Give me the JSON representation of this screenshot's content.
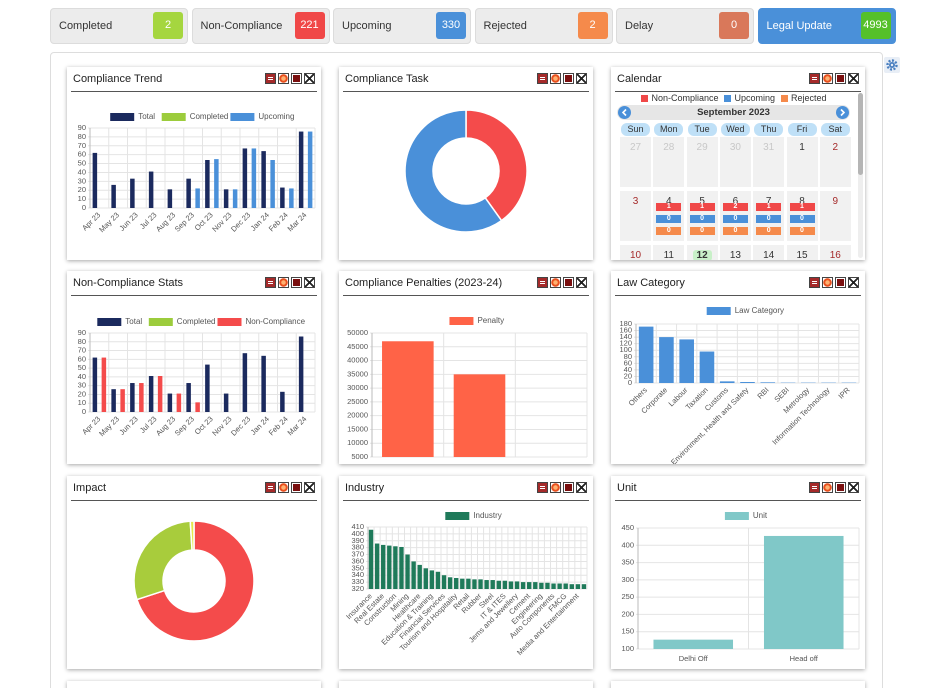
{
  "status_cards": [
    {
      "label": "Completed",
      "value": 2,
      "color": "#a5d63f"
    },
    {
      "label": "Non-Compliance",
      "value": 221,
      "color": "#f04848"
    },
    {
      "label": "Upcoming",
      "value": 330,
      "color": "#4a90d9"
    },
    {
      "label": "Rejected",
      "value": 2,
      "color": "#f58a4b"
    },
    {
      "label": "Delay",
      "value": 0,
      "color": "#d9785a"
    },
    {
      "label": "Legal Update",
      "value": 4993,
      "color": "#55c02a",
      "background": "#4a90d9"
    }
  ],
  "chart_data": [
    {
      "type": "bar",
      "title": "Compliance Trend",
      "categories": [
        "Apr 23",
        "May 23",
        "Jun 23",
        "Jul 23",
        "Aug 23",
        "Sep 23",
        "Oct 23",
        "Nov 23",
        "Dec 23",
        "Jan 24",
        "Feb 24",
        "Mar 24"
      ],
      "series": [
        {
          "name": "Total",
          "color": "#1b2a5e",
          "values": [
            62,
            26,
            33,
            41,
            21,
            33,
            54,
            21,
            67,
            64,
            23,
            86
          ]
        },
        {
          "name": "Completed",
          "color": "#9ccc3c",
          "values": [
            0,
            0,
            0,
            0,
            0,
            0,
            0,
            0,
            0,
            0,
            0,
            0
          ]
        },
        {
          "name": "Upcoming",
          "color": "#4a90d9",
          "values": [
            0,
            0,
            0,
            0,
            0,
            22,
            55,
            21,
            67,
            54,
            22,
            86
          ]
        }
      ],
      "ylim": [
        0,
        90
      ],
      "yticks": [
        0,
        10,
        20,
        30,
        40,
        50,
        60,
        70,
        80,
        90
      ],
      "grid": true
    },
    {
      "type": "doughnut",
      "title": "Compliance Task",
      "categories": [
        null,
        null
      ],
      "values": [
        221,
        330
      ],
      "colors": [
        "#f44b4b",
        "#4a90d9"
      ]
    },
    {
      "type": "bar",
      "title": "Non-Compliance Stats",
      "categories": [
        "Apr 23",
        "May 23",
        "Jun 23",
        "Jul 23",
        "Aug 23",
        "Sep 23",
        "Oct 23",
        "Nov 23",
        "Dec 23",
        "Jan 24",
        "Feb 24",
        "Mar 24"
      ],
      "series": [
        {
          "name": "Total",
          "color": "#1b2a5e",
          "values": [
            62,
            26,
            33,
            41,
            21,
            33,
            54,
            21,
            67,
            64,
            23,
            86
          ]
        },
        {
          "name": "Completed",
          "color": "#9ccc3c",
          "values": [
            0,
            0,
            0,
            0,
            0,
            0,
            0,
            0,
            0,
            0,
            0,
            0
          ]
        },
        {
          "name": "Non-Compliance",
          "color": "#f44b4b",
          "values": [
            62,
            26,
            33,
            41,
            21,
            11,
            0,
            0,
            0,
            0,
            0,
            0
          ]
        }
      ],
      "ylim": [
        0,
        90
      ],
      "yticks": [
        0,
        10,
        20,
        30,
        40,
        50,
        60,
        70,
        80,
        90
      ],
      "grid": true
    },
    {
      "type": "bar",
      "title": "Compliance Penalties (2023-24)",
      "categories": [
        null,
        null
      ],
      "series": [
        {
          "name": "Penalty",
          "color": "#ff6347",
          "values": [
            47000,
            35000
          ]
        }
      ],
      "ylim": [
        5000,
        50000
      ],
      "yticks": [
        5000,
        10000,
        15000,
        20000,
        25000,
        30000,
        35000,
        40000,
        45000,
        50000
      ],
      "grid": true
    },
    {
      "type": "bar",
      "title": "Law Category",
      "categories": [
        "Others",
        "Corporate",
        "Labour",
        "Taxation",
        "Customs",
        "Environment, Health and Safety",
        "RBI",
        "SEBI",
        "Metrology",
        "Information Technology",
        "IPR"
      ],
      "series": [
        {
          "name": "Law Category",
          "color": "#4a90d9",
          "values": [
            172,
            140,
            133,
            96,
            5,
            3,
            2,
            1,
            1,
            1,
            1
          ]
        }
      ],
      "ylim": [
        0,
        180
      ],
      "yticks": [
        0,
        20,
        40,
        60,
        80,
        100,
        120,
        140,
        160,
        180
      ],
      "grid": true
    },
    {
      "type": "doughnut",
      "title": "Impact",
      "categories": [
        null,
        null,
        null
      ],
      "values": [
        70,
        29,
        1
      ],
      "colors": [
        "#f44b4b",
        "#a8cc3c",
        "#e6e84a"
      ]
    },
    {
      "type": "bar",
      "title": "Industry",
      "categories": [
        "Insurance",
        null,
        "Real Estate",
        null,
        "Construction",
        null,
        "Mining",
        null,
        "Healthcare",
        null,
        "Education & Training",
        null,
        "Financial Services",
        null,
        "Tourism and Hospitality",
        null,
        "Retail",
        null,
        "Rubber",
        null,
        "Steel",
        null,
        "IT & ITES",
        null,
        "Jems and Jewellery",
        null,
        "Cement",
        null,
        "Engineering",
        null,
        "Auto Components",
        null,
        "FMCG",
        null,
        "Media and Entertainment",
        null
      ],
      "series": [
        {
          "name": "Industry",
          "color": "#1f7a5a",
          "values": [
            406,
            386,
            384,
            383,
            382,
            381,
            370,
            360,
            355,
            350,
            347,
            345,
            340,
            337,
            336,
            335,
            335,
            334,
            334,
            333,
            333,
            332,
            332,
            331,
            331,
            330,
            330,
            330,
            329,
            329,
            328,
            328,
            328,
            327,
            327,
            327
          ]
        }
      ],
      "ylim": [
        320,
        410
      ],
      "yticks": [
        320,
        330,
        340,
        350,
        360,
        370,
        380,
        390,
        400,
        410
      ],
      "grid": true
    },
    {
      "type": "bar",
      "title": "Unit",
      "categories": [
        "Delhi Off",
        "Head off"
      ],
      "series": [
        {
          "name": "Unit",
          "color": "#80c8c8",
          "values": [
            127,
            427
          ]
        }
      ],
      "ylim": [
        100,
        450
      ],
      "yticks": [
        100,
        150,
        200,
        250,
        300,
        350,
        400,
        450
      ],
      "grid": true
    }
  ],
  "calendar": {
    "title": "Calendar",
    "legend": [
      {
        "name": "Non-Compliance",
        "color": "#f04848"
      },
      {
        "name": "Upcoming",
        "color": "#4a90d9"
      },
      {
        "name": "Rejected",
        "color": "#f58a4b"
      }
    ],
    "month": "September 2023",
    "weekdays": [
      "Sun",
      "Mon",
      "Tue",
      "Wed",
      "Thu",
      "Fri",
      "Sat"
    ],
    "weeks": [
      [
        {
          "day": 27,
          "muted": true
        },
        {
          "day": 28,
          "muted": true
        },
        {
          "day": 29,
          "muted": true
        },
        {
          "day": 30,
          "muted": true
        },
        {
          "day": 31,
          "muted": true
        },
        {
          "day": 1
        },
        {
          "day": 2
        }
      ],
      [
        {
          "day": 3
        },
        {
          "day": 4,
          "counts": [
            1,
            0,
            0
          ]
        },
        {
          "day": 5,
          "counts": [
            1,
            0,
            0
          ]
        },
        {
          "day": 6,
          "counts": [
            2,
            0,
            0
          ]
        },
        {
          "day": 7,
          "counts": [
            1,
            0,
            0
          ]
        },
        {
          "day": 8,
          "counts": [
            1,
            0,
            0
          ]
        },
        {
          "day": 9
        }
      ],
      [
        {
          "day": 10
        },
        {
          "day": 11
        },
        {
          "day": 12,
          "today": true
        },
        {
          "day": 13
        },
        {
          "day": 14
        },
        {
          "day": 15
        },
        {
          "day": 16
        }
      ]
    ]
  }
}
